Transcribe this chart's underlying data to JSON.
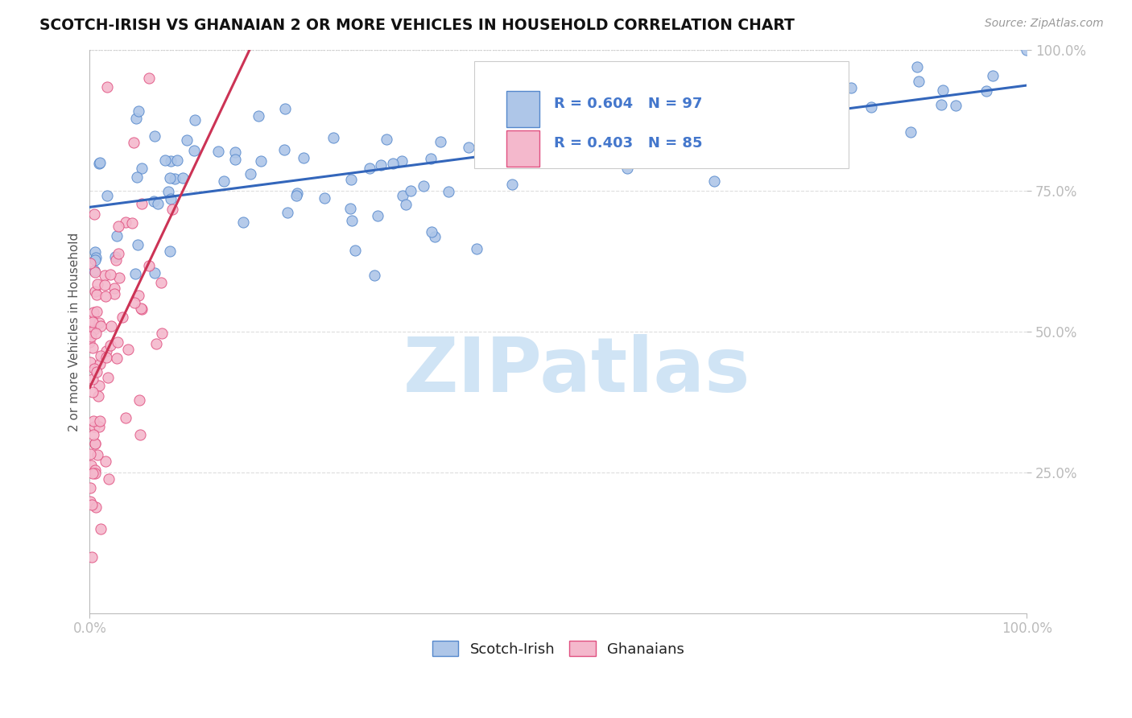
{
  "title": "SCOTCH-IRISH VS GHANAIAN 2 OR MORE VEHICLES IN HOUSEHOLD CORRELATION CHART",
  "source": "Source: ZipAtlas.com",
  "ylabel": "2 or more Vehicles in Household",
  "legend_blue_label": "Scotch-Irish",
  "legend_pink_label": "Ghanaians",
  "R_blue": 0.604,
  "N_blue": 97,
  "R_pink": 0.403,
  "N_pink": 85,
  "blue_fill": "#aec6e8",
  "blue_edge": "#5588cc",
  "pink_fill": "#f4b8cc",
  "pink_edge": "#e05080",
  "trend_blue": "#3366bb",
  "trend_pink": "#cc3355",
  "watermark_text": "ZIPatlas",
  "watermark_color": "#d0e4f5",
  "tick_color": "#4477cc",
  "axis_color": "#bbbbbb",
  "grid_color": "#dddddd",
  "title_color": "#111111",
  "source_color": "#999999"
}
